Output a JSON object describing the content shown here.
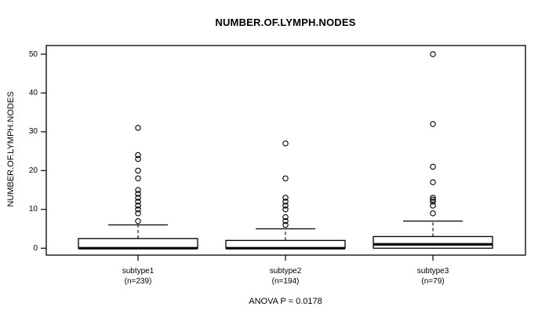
{
  "chart_data": {
    "type": "boxplot",
    "title": "NUMBER.OF.LYMPH.NODES",
    "ylabel": "NUMBER.OF.LYMPH.NODES",
    "footer": "ANOVA P = 0.0178",
    "ylim": [
      0,
      50
    ],
    "yticks": [
      0,
      10,
      20,
      30,
      40,
      50
    ],
    "grid": false,
    "line_color": "#000000",
    "background_color": "#ffffff",
    "groups": [
      {
        "label": "subtype1",
        "sublabel": "(n=239)",
        "n": 239,
        "q1": 0,
        "median": 0,
        "q3": 2.5,
        "whisker_low": 0,
        "whisker_high": 6,
        "outliers": [
          7,
          9,
          10,
          11,
          12,
          13,
          14,
          15,
          18,
          20,
          23,
          24,
          31
        ]
      },
      {
        "label": "subtype2",
        "sublabel": "(n=194)",
        "n": 194,
        "q1": 0,
        "median": 0,
        "q3": 2,
        "whisker_low": 0,
        "whisker_high": 5,
        "outliers": [
          6,
          7,
          8,
          10,
          11,
          12,
          13,
          18,
          27
        ]
      },
      {
        "label": "subtype3",
        "sublabel": "(n=79)",
        "n": 79,
        "q1": 0,
        "median": 1,
        "q3": 3,
        "whisker_low": 0,
        "whisker_high": 7,
        "outliers": [
          9,
          11,
          12,
          12.5,
          13,
          17,
          21,
          32,
          50
        ]
      }
    ]
  }
}
